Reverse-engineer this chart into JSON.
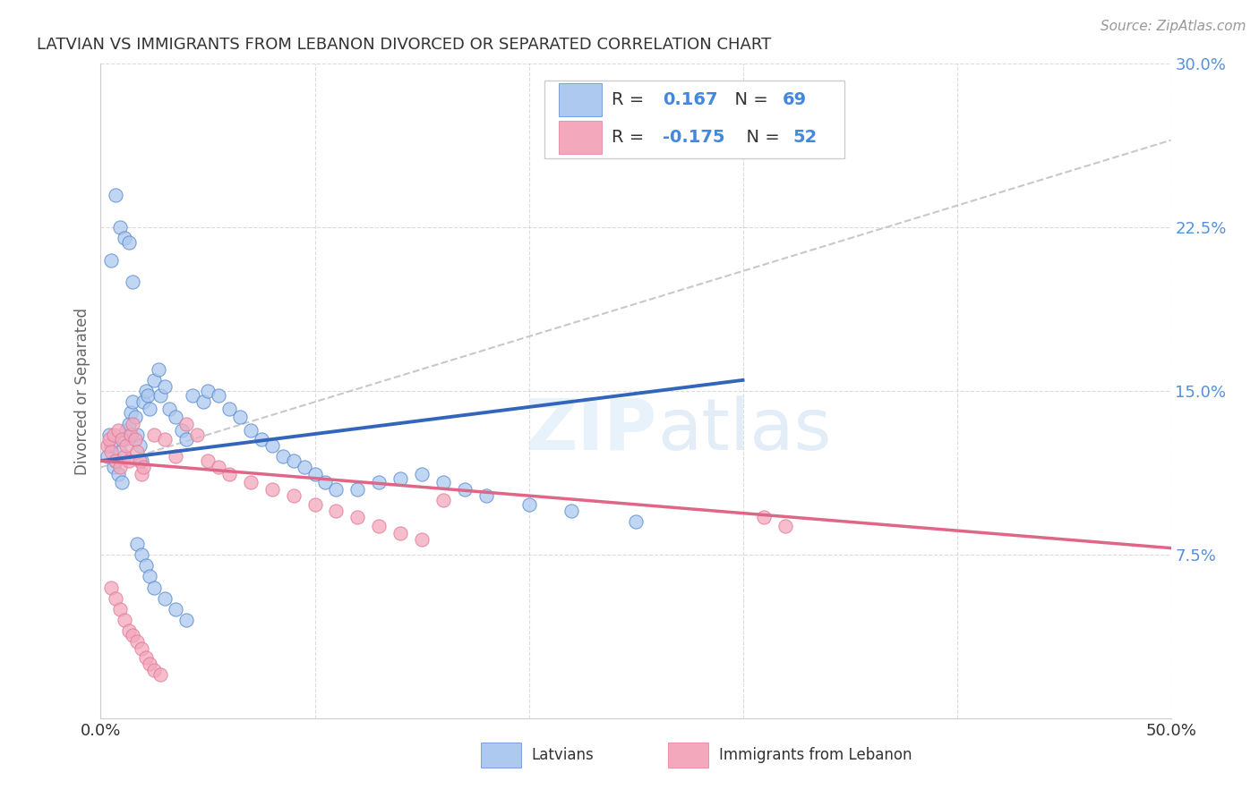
{
  "title": "LATVIAN VS IMMIGRANTS FROM LEBANON DIVORCED OR SEPARATED CORRELATION CHART",
  "source": "Source: ZipAtlas.com",
  "ylabel": "Divorced or Separated",
  "xlim": [
    0.0,
    0.5
  ],
  "ylim": [
    0.0,
    0.3
  ],
  "latvian_color": "#adc9f0",
  "lebanon_color": "#f4a8bc",
  "latvian_edge_color": "#5588cc",
  "lebanon_edge_color": "#e07898",
  "latvian_line_color": "#3366bb",
  "lebanon_line_color": "#e06688",
  "trend_line_color": "#bbbbbb",
  "background_color": "#ffffff",
  "lv_line_x0": 0.0,
  "lv_line_y0": 0.118,
  "lv_line_x1": 0.3,
  "lv_line_y1": 0.155,
  "lb_line_x0": 0.0,
  "lb_line_y0": 0.118,
  "lb_line_x1": 0.5,
  "lb_line_y1": 0.078,
  "gray_line_x0": 0.0,
  "gray_line_y0": 0.115,
  "gray_line_x1": 0.5,
  "gray_line_y1": 0.265
}
